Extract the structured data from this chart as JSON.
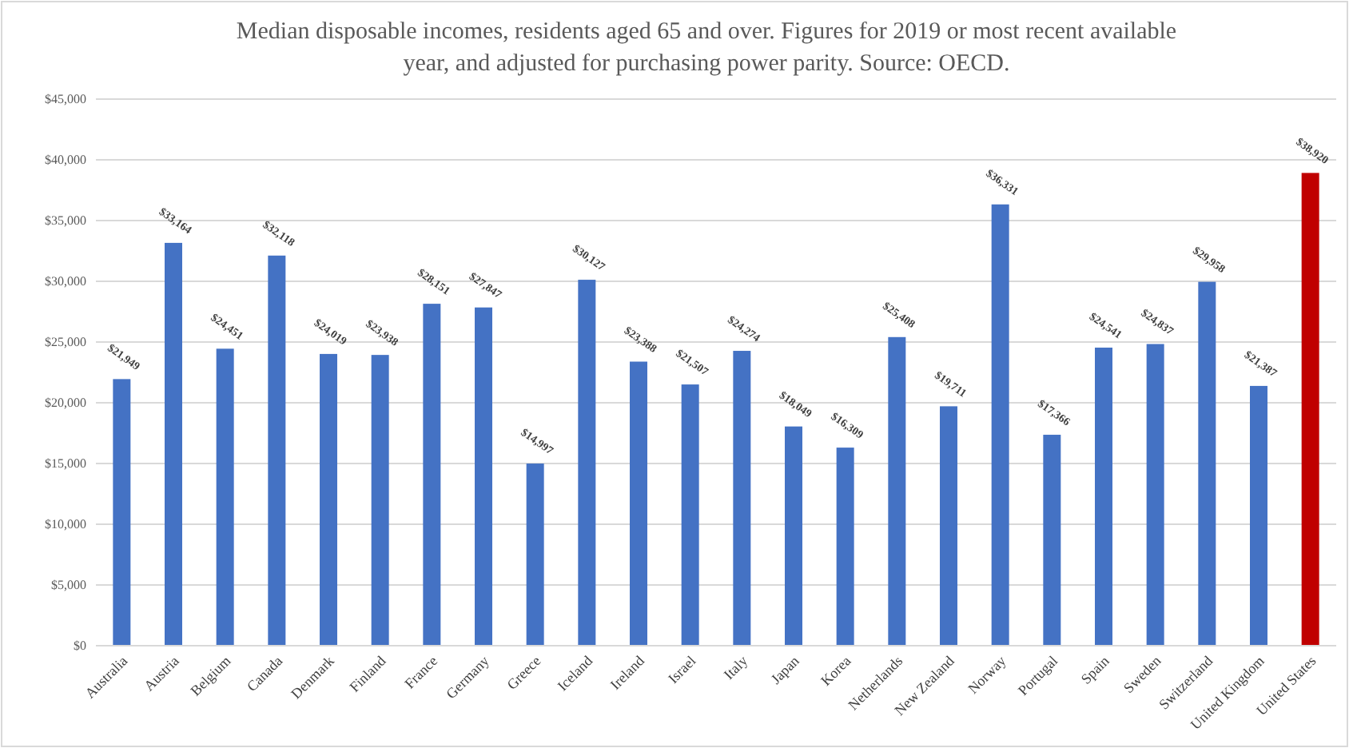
{
  "chart_data": {
    "type": "bar",
    "title": "Median disposable incomes, residents aged 65 and over. Figures for 2019 or most recent available year, and adjusted for purchasing power parity. Source: OECD.",
    "categories": [
      "Australia",
      "Austria",
      "Belgium",
      "Canada",
      "Denmark",
      "Finland",
      "France",
      "Germany",
      "Greece",
      "Iceland",
      "Ireland",
      "Israel",
      "Italy",
      "Japan",
      "Korea",
      "Netherlands",
      "New Zealand",
      "Norway",
      "Portugal",
      "Spain",
      "Sweden",
      "Switzerland",
      "United Kingdom",
      "United States"
    ],
    "values": [
      21949,
      33164,
      24451,
      32118,
      24019,
      23938,
      28151,
      27847,
      14997,
      30127,
      23388,
      21507,
      24274,
      18049,
      16309,
      25408,
      19711,
      36331,
      17366,
      24541,
      24837,
      29958,
      21387,
      38920
    ],
    "colors": [
      "#4472c4",
      "#4472c4",
      "#4472c4",
      "#4472c4",
      "#4472c4",
      "#4472c4",
      "#4472c4",
      "#4472c4",
      "#4472c4",
      "#4472c4",
      "#4472c4",
      "#4472c4",
      "#4472c4",
      "#4472c4",
      "#4472c4",
      "#4472c4",
      "#4472c4",
      "#4472c4",
      "#4472c4",
      "#4472c4",
      "#4472c4",
      "#4472c4",
      "#4472c4",
      "#c00000"
    ],
    "value_labels": [
      "$21,949",
      "$33,164",
      "$24,451",
      "$32,118",
      "$24,019",
      "$23,938",
      "$28,151",
      "$27,847",
      "$14,997",
      "$30,127",
      "$23,388",
      "$21,507",
      "$24,274",
      "$18,049",
      "$16,309",
      "$25,408",
      "$19,711",
      "$36,331",
      "$17,366",
      "$24,541",
      "$24,837",
      "$29,958",
      "$21,387",
      "$38,920"
    ],
    "ylim": [
      0,
      45000
    ],
    "yticks": [
      {
        "value": 0,
        "label": "$0"
      },
      {
        "value": 5000,
        "label": "$5,000"
      },
      {
        "value": 10000,
        "label": "$10,000"
      },
      {
        "value": 15000,
        "label": "$15,000"
      },
      {
        "value": 20000,
        "label": "$20,000"
      },
      {
        "value": 25000,
        "label": "$25,000"
      },
      {
        "value": 30000,
        "label": "$30,000"
      },
      {
        "value": 35000,
        "label": "$35,000"
      },
      {
        "value": 40000,
        "label": "$40,000"
      },
      {
        "value": 45000,
        "label": "$45,000"
      }
    ],
    "grid": "y"
  }
}
